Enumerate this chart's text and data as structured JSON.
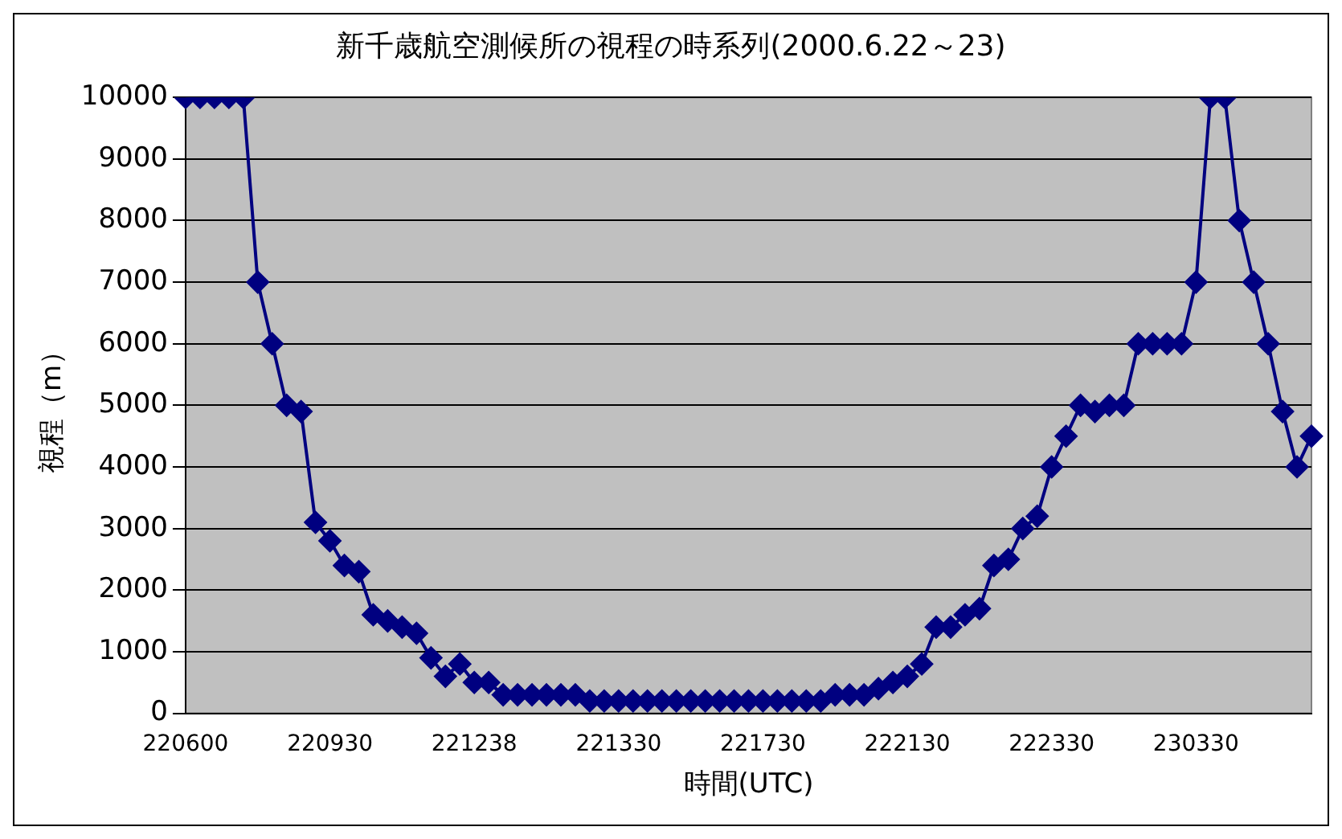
{
  "chart_data": {
    "type": "line",
    "title": "新千歳航空測候所の視程の時系列(2000.6.22～23)",
    "xlabel": "時間(UTC)",
    "ylabel": "視程（m）",
    "categories": [
      "220600",
      null,
      null,
      null,
      null,
      null,
      null,
      null,
      null,
      null,
      "220930",
      null,
      null,
      null,
      null,
      null,
      null,
      null,
      null,
      null,
      "221238",
      null,
      null,
      null,
      null,
      null,
      null,
      null,
      null,
      null,
      "221330",
      null,
      null,
      null,
      null,
      null,
      null,
      null,
      null,
      null,
      "221730",
      null,
      null,
      null,
      null,
      null,
      null,
      null,
      null,
      null,
      "222130",
      null,
      null,
      null,
      null,
      null,
      null,
      null,
      null,
      null,
      "222330",
      null,
      null,
      null,
      null,
      null,
      null,
      null,
      null,
      null,
      "230330",
      null,
      null,
      null,
      null,
      null,
      null,
      null,
      null
    ],
    "series": [
      {
        "color": "#000080",
        "values": [
          10000,
          10000,
          10000,
          10000,
          10000,
          7000,
          6000,
          5000,
          4900,
          3100,
          2800,
          2400,
          2300,
          1600,
          1500,
          1400,
          1300,
          900,
          600,
          800,
          500,
          500,
          300,
          300,
          300,
          300,
          300,
          300,
          200,
          200,
          200,
          200,
          200,
          200,
          200,
          200,
          200,
          200,
          200,
          200,
          200,
          200,
          200,
          200,
          200,
          300,
          300,
          300,
          400,
          500,
          600,
          800,
          1400,
          1400,
          1600,
          1700,
          2400,
          2500,
          3000,
          3200,
          4000,
          4500,
          5000,
          4900,
          5000,
          5000,
          6000,
          6000,
          6000,
          6000,
          7000,
          10000,
          10000,
          8000,
          7000,
          6000,
          4900,
          4000,
          4500
        ]
      }
    ],
    "ylim": [
      0,
      10000
    ],
    "yticks": [
      0,
      1000,
      2000,
      3000,
      4000,
      5000,
      6000,
      7000,
      8000,
      9000,
      10000
    ],
    "grid": "y",
    "legend": false,
    "marker": "diamond",
    "line_style": "solid"
  }
}
